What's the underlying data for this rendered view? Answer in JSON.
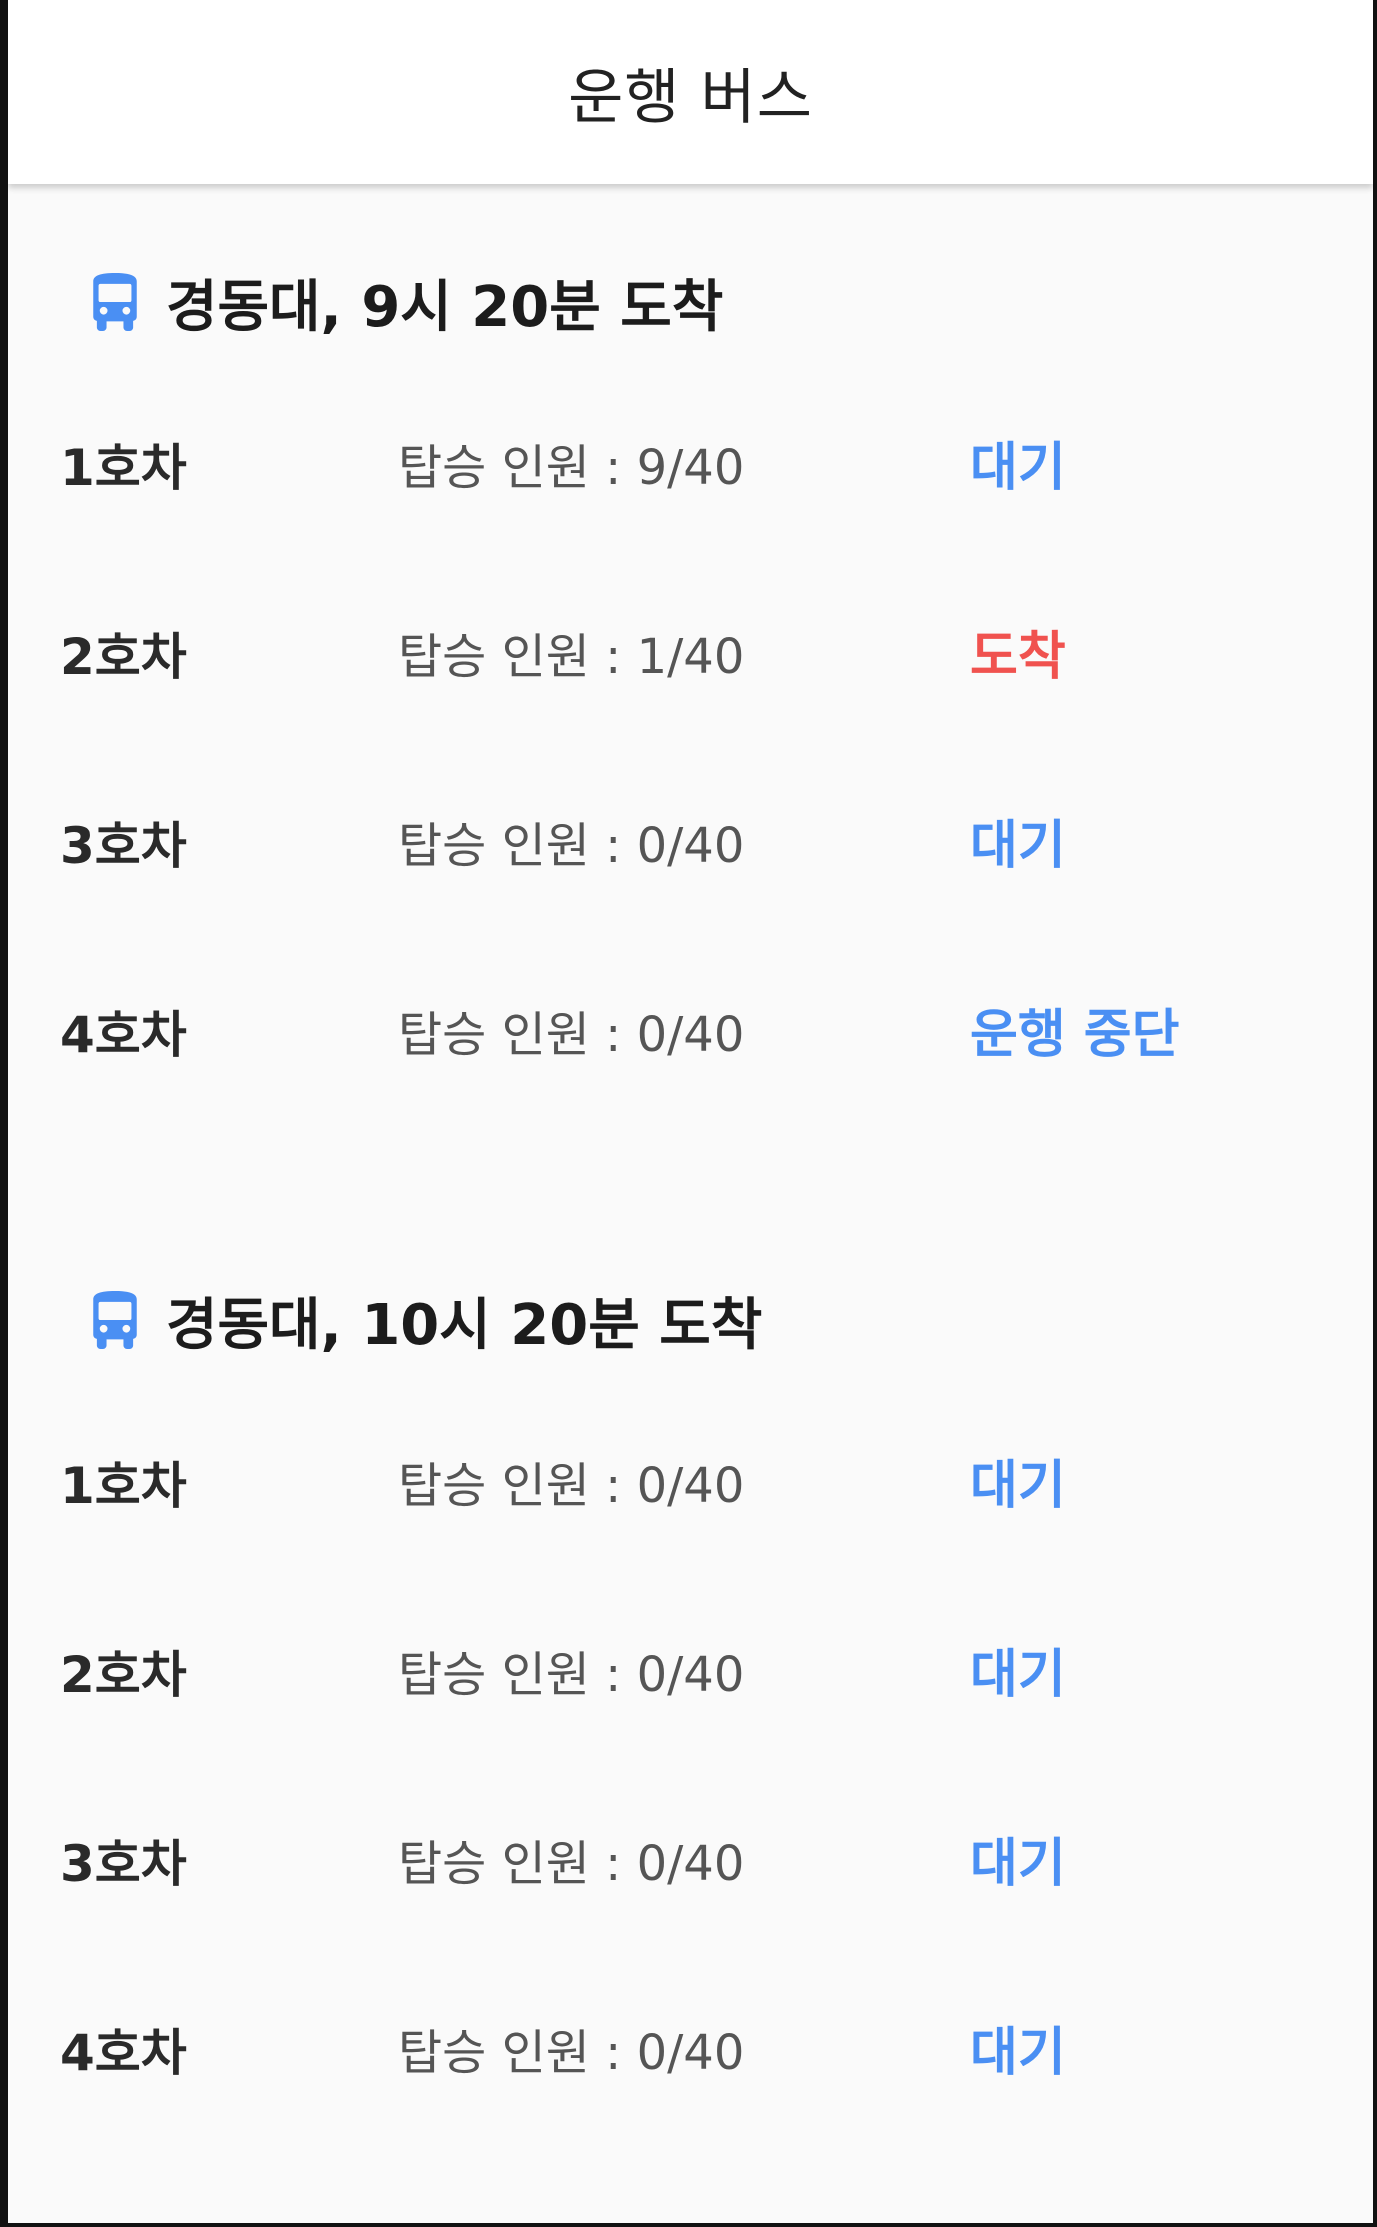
{
  "appbar": {
    "title": "운행 버스"
  },
  "colors": {
    "accent_blue": "#4a8ff3",
    "arrived_red": "#f0524f",
    "text_dark": "#1c1c1c",
    "text_gray": "#555555"
  },
  "groups": [
    {
      "icon": "bus-icon",
      "title": "경동대, 9시 20분 도착",
      "rows": [
        {
          "car": "1호차",
          "riders": "탑승 인원 : 9/40",
          "status": "대기",
          "status_color": "#4a8ff3"
        },
        {
          "car": "2호차",
          "riders": "탑승 인원 : 1/40",
          "status": "도착",
          "status_color": "#f0524f"
        },
        {
          "car": "3호차",
          "riders": "탑승 인원 : 0/40",
          "status": "대기",
          "status_color": "#4a8ff3"
        },
        {
          "car": "4호차",
          "riders": "탑승 인원 : 0/40",
          "status": "운행 중단",
          "status_color": "#4a8ff3"
        }
      ]
    },
    {
      "icon": "bus-icon",
      "title": "경동대, 10시 20분 도착",
      "rows": [
        {
          "car": "1호차",
          "riders": "탑승 인원 : 0/40",
          "status": "대기",
          "status_color": "#4a8ff3"
        },
        {
          "car": "2호차",
          "riders": "탑승 인원 : 0/40",
          "status": "대기",
          "status_color": "#4a8ff3"
        },
        {
          "car": "3호차",
          "riders": "탑승 인원 : 0/40",
          "status": "대기",
          "status_color": "#4a8ff3"
        },
        {
          "car": "4호차",
          "riders": "탑승 인원 : 0/40",
          "status": "대기",
          "status_color": "#4a8ff3"
        }
      ]
    }
  ]
}
